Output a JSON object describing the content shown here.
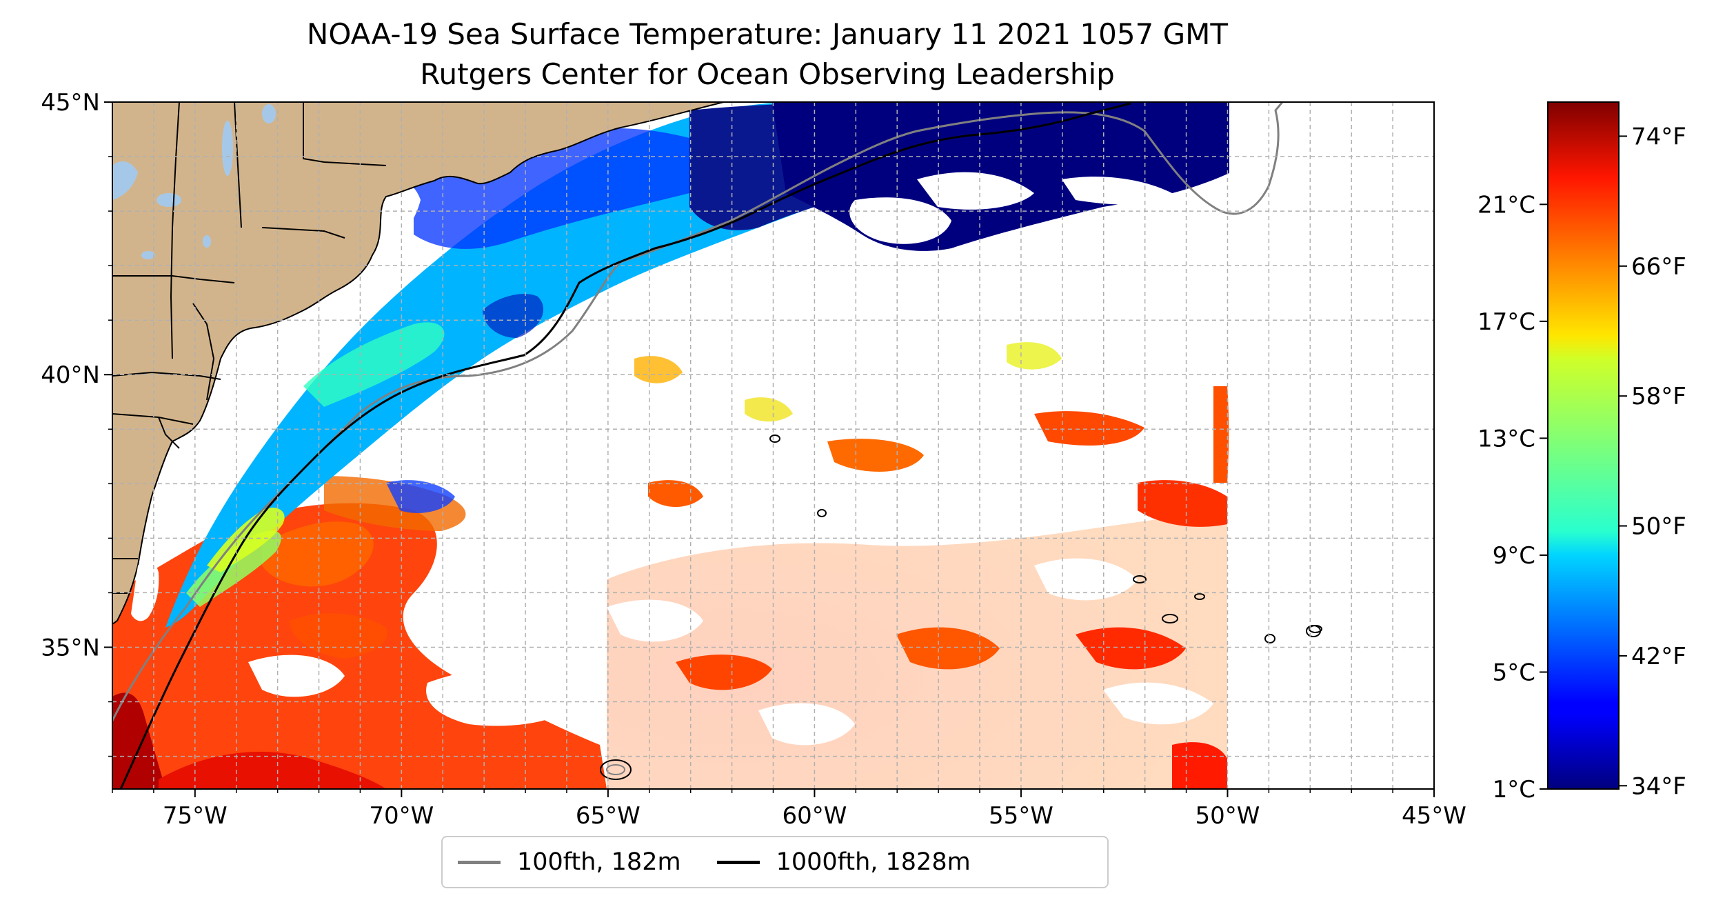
{
  "title": {
    "line1": "NOAA-19 Sea Surface Temperature: January 11 2021 1057 GMT",
    "line2": "Rutgers Center for Ocean Observing Leadership"
  },
  "map": {
    "lon_range": [
      -77,
      -45
    ],
    "lat_range": [
      32.4,
      45
    ],
    "x_ticks": [
      {
        "value": -75,
        "label": "75°W"
      },
      {
        "value": -70,
        "label": "70°W"
      },
      {
        "value": -65,
        "label": "65°W"
      },
      {
        "value": -60,
        "label": "60°W"
      },
      {
        "value": -55,
        "label": "55°W"
      },
      {
        "value": -50,
        "label": "50°W"
      },
      {
        "value": -45,
        "label": "45°W"
      }
    ],
    "y_ticks": [
      {
        "value": 45,
        "label": "45°N"
      },
      {
        "value": 40,
        "label": "40°N"
      },
      {
        "value": 35,
        "label": "35°N"
      }
    ],
    "gridlines": true,
    "colors": {
      "land": "#d2b48c",
      "lakes": "#a6c8e8",
      "shelf_line": "#808080",
      "slope_line": "#000000"
    }
  },
  "legend": {
    "placement": "bottom-center",
    "items": [
      {
        "label": "100fth, 182m",
        "color": "#808080"
      },
      {
        "label": "1000fth, 1828m",
        "color": "#000000"
      }
    ]
  },
  "colorbar": {
    "colormap": "jet",
    "celsius_labels": [
      "21°C",
      "17°C",
      "13°C",
      "9°C",
      "5°C",
      "1°C"
    ],
    "celsius_values": [
      21,
      17,
      13,
      9,
      5,
      1
    ],
    "fahrenheit_labels": [
      "74°F",
      "66°F",
      "58°F",
      "50°F",
      "42°F",
      "34°F"
    ],
    "fahrenheit_values": [
      74,
      66,
      58,
      50,
      42,
      34
    ],
    "range_c": [
      1,
      24.5
    ]
  }
}
